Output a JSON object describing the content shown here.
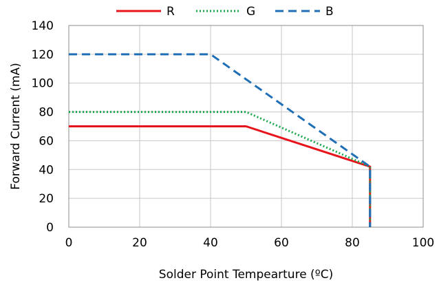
{
  "chart_data": {
    "type": "line",
    "xlabel": "Solder Point Tempearture (ºC)",
    "ylabel": "Forward Current (mA)",
    "xlim": [
      0,
      100
    ],
    "ylim": [
      0,
      140
    ],
    "xticks": [
      0,
      20,
      40,
      60,
      80,
      100
    ],
    "yticks": [
      0,
      20,
      40,
      60,
      80,
      100,
      120,
      140
    ],
    "xtick_labels": [
      "0",
      "20",
      "40",
      "60",
      "80",
      "100"
    ],
    "ytick_labels": [
      "0",
      "20",
      "40",
      "60",
      "80",
      "100",
      "120",
      "140"
    ],
    "grid": true,
    "legend_position": "top-center",
    "series": [
      {
        "name": "R",
        "color": "#e8141c",
        "style": "solid",
        "x": [
          0,
          50,
          85,
          85
        ],
        "y": [
          70,
          70,
          42,
          0
        ]
      },
      {
        "name": "G",
        "color": "#1aa84a",
        "style": "dotted",
        "x": [
          0,
          50,
          85,
          85
        ],
        "y": [
          80,
          80,
          42,
          0
        ]
      },
      {
        "name": "B",
        "color": "#1f6fb6",
        "style": "dashed",
        "x": [
          0,
          40,
          85,
          85
        ],
        "y": [
          120,
          120,
          42,
          0
        ]
      }
    ]
  }
}
